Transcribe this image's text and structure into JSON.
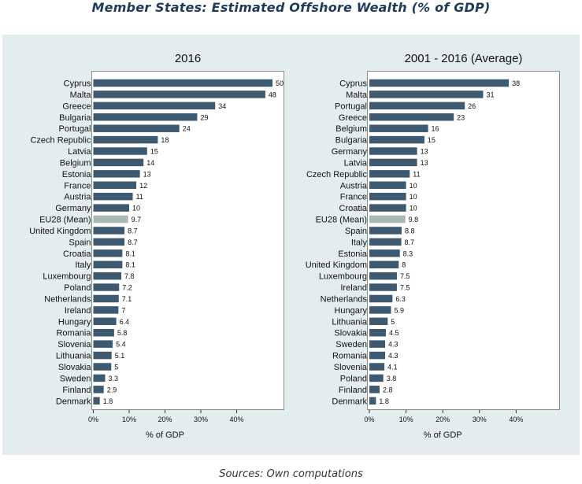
{
  "title": "Member States: Estimated Offshore Wealth (% of GDP)",
  "source": "Sources: Own computations",
  "colors": {
    "bar": "#3d5a70",
    "mean_bar": "#a7b9b0",
    "background": "#e3edee"
  },
  "chart_data": [
    {
      "type": "bar",
      "orientation": "horizontal",
      "title": "2016",
      "xlabel": "% of GDP",
      "xlim": [
        0,
        50
      ],
      "xticks": [
        "0%",
        "10%",
        "20%",
        "30%",
        "40%"
      ],
      "categories": [
        "Cyprus",
        "Malta",
        "Greece",
        "Bulgaria",
        "Portugal",
        "Czech Republic",
        "Latvia",
        "Belgium",
        "Estonia",
        "France",
        "Austria",
        "Germany",
        "EU28 (Mean)",
        "United Kingdom",
        "Spain",
        "Croatia",
        "Italy",
        "Luxembourg",
        "Poland",
        "Netherlands",
        "Ireland",
        "Hungary",
        "Romania",
        "Slovenia",
        "Lithuania",
        "Slovakia",
        "Sweden",
        "Finland",
        "Denmark"
      ],
      "values": [
        50,
        48,
        34,
        29,
        24,
        18,
        15,
        14,
        13,
        12,
        11,
        10,
        9.7,
        8.7,
        8.7,
        8.1,
        8.1,
        7.8,
        7.2,
        7.1,
        7,
        6.4,
        5.8,
        5.4,
        5.1,
        5,
        3.3,
        2.9,
        1.8
      ],
      "value_labels": [
        "50",
        "48",
        "34",
        "29",
        "24",
        "18",
        "15",
        "14",
        "13",
        "12",
        "11",
        "10",
        "9.7",
        "8.7",
        "8.7",
        "8.1",
        "8.1",
        "7.8",
        "7.2",
        "7.1",
        "7",
        "6.4",
        "5.8",
        "5.4",
        "5.1",
        "5",
        "3.3",
        "2.9",
        "1.8"
      ],
      "highlight": "EU28 (Mean)",
      "grid": false
    },
    {
      "type": "bar",
      "orientation": "horizontal",
      "title": "2001 - 2016 (Average)",
      "xlabel": "% of GDP",
      "xlim": [
        0,
        40
      ],
      "xticks": [
        "0%",
        "10%",
        "20%",
        "30%",
        "40%"
      ],
      "categories": [
        "Cyprus",
        "Malta",
        "Portugal",
        "Greece",
        "Belgium",
        "Bulgaria",
        "Germany",
        "Latvia",
        "Czech Republic",
        "Austria",
        "France",
        "Croatia",
        "EU28 (Mean)",
        "Spain",
        "Italy",
        "Estonia",
        "United Kingdom",
        "Luxembourg",
        "Ireland",
        "Netherlands",
        "Hungary",
        "Lithuania",
        "Slovakia",
        "Sweden",
        "Romania",
        "Slovenia",
        "Poland",
        "Finland",
        "Denmark"
      ],
      "values": [
        38,
        31,
        26,
        23,
        16,
        15,
        13,
        13,
        11,
        10,
        10,
        10,
        9.8,
        8.8,
        8.7,
        8.3,
        8,
        7.5,
        7.5,
        6.3,
        5.9,
        5,
        4.5,
        4.3,
        4.3,
        4.1,
        3.8,
        2.8,
        1.8
      ],
      "value_labels": [
        "38",
        "31",
        "26",
        "23",
        "16",
        "15",
        "13",
        "13",
        "11",
        "10",
        "10",
        "10",
        "9.8",
        "8.8",
        "8.7",
        "8.3",
        "8",
        "7.5",
        "7.5",
        "6.3",
        "5.9",
        "5",
        "4.5",
        "4.3",
        "4.3",
        "4.1",
        "3.8",
        "2.8",
        "1.8"
      ],
      "highlight": "EU28 (Mean)",
      "grid": false
    }
  ]
}
